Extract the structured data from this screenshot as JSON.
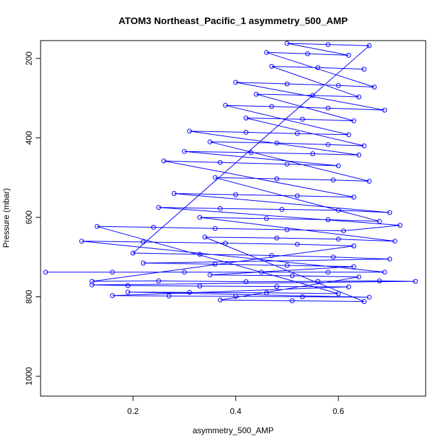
{
  "chart_data": {
    "type": "scatter",
    "title": "ATOM3 Northeast_Pacific_1 asymmetry_500_AMP",
    "xlabel": "asymmetry_500_AMP",
    "ylabel": "Pressure (mbar)",
    "x_ticks": [
      "0.2",
      "0.4",
      "0.6"
    ],
    "y_ticks": [
      "200",
      "400",
      "600",
      "800",
      "1000"
    ],
    "xlim": [
      0.02,
      0.77
    ],
    "ylim": [
      1050,
      155
    ],
    "y_reversed": true,
    "grid": false,
    "legend": "none",
    "series_color": "#0000ff",
    "marker": "open-circle",
    "connected_by_lines": true,
    "series": [
      {
        "points": [
          [
            0.03,
            738
          ],
          [
            0.16,
            738
          ],
          [
            0.3,
            738
          ],
          [
            0.45,
            738
          ],
          [
            0.58,
            738
          ],
          [
            0.69,
            738
          ],
          [
            0.1,
            660
          ],
          [
            0.22,
            662
          ],
          [
            0.38,
            665
          ],
          [
            0.52,
            668
          ],
          [
            0.63,
            672
          ],
          [
            0.12,
            761
          ],
          [
            0.25,
            760
          ],
          [
            0.42,
            762
          ],
          [
            0.56,
            761
          ],
          [
            0.68,
            760
          ],
          [
            0.75,
            761
          ],
          [
            0.12,
            770
          ],
          [
            0.19,
            772
          ],
          [
            0.33,
            773
          ],
          [
            0.48,
            774
          ],
          [
            0.62,
            775
          ],
          [
            0.16,
            797
          ],
          [
            0.27,
            798
          ],
          [
            0.4,
            799
          ],
          [
            0.53,
            800
          ],
          [
            0.66,
            801
          ],
          [
            0.19,
            788
          ],
          [
            0.31,
            789
          ],
          [
            0.46,
            790
          ],
          [
            0.6,
            792
          ],
          [
            0.13,
            623
          ],
          [
            0.24,
            625
          ],
          [
            0.36,
            628
          ],
          [
            0.5,
            631
          ],
          [
            0.61,
            634
          ],
          [
            0.72,
            620
          ],
          [
            0.25,
            575
          ],
          [
            0.37,
            578
          ],
          [
            0.49,
            580
          ],
          [
            0.6,
            582
          ],
          [
            0.7,
            588
          ],
          [
            0.28,
            540
          ],
          [
            0.4,
            543
          ],
          [
            0.52,
            546
          ],
          [
            0.63,
            549
          ],
          [
            0.26,
            458
          ],
          [
            0.37,
            462
          ],
          [
            0.5,
            466
          ],
          [
            0.6,
            470
          ],
          [
            0.3,
            434
          ],
          [
            0.43,
            437
          ],
          [
            0.55,
            440
          ],
          [
            0.64,
            443
          ],
          [
            0.31,
            383
          ],
          [
            0.42,
            386
          ],
          [
            0.52,
            389
          ],
          [
            0.62,
            392
          ],
          [
            0.38,
            318
          ],
          [
            0.47,
            321
          ],
          [
            0.58,
            325
          ],
          [
            0.69,
            330
          ],
          [
            0.4,
            260
          ],
          [
            0.5,
            264
          ],
          [
            0.6,
            268
          ],
          [
            0.67,
            272
          ],
          [
            0.46,
            185
          ],
          [
            0.54,
            188
          ],
          [
            0.62,
            192
          ],
          [
            0.5,
            162
          ],
          [
            0.58,
            165
          ],
          [
            0.66,
            168
          ],
          [
            0.2,
            690
          ],
          [
            0.33,
            693
          ],
          [
            0.47,
            696
          ],
          [
            0.59,
            700
          ],
          [
            0.7,
            705
          ],
          [
            0.22,
            715
          ],
          [
            0.36,
            718
          ],
          [
            0.5,
            721
          ],
          [
            0.63,
            724
          ],
          [
            0.35,
            745
          ],
          [
            0.51,
            747
          ],
          [
            0.64,
            750
          ],
          [
            0.37,
            808
          ],
          [
            0.51,
            810
          ],
          [
            0.65,
            812
          ],
          [
            0.34,
            650
          ],
          [
            0.48,
            652
          ],
          [
            0.6,
            655
          ],
          [
            0.71,
            660
          ],
          [
            0.33,
            600
          ],
          [
            0.46,
            603
          ],
          [
            0.58,
            606
          ],
          [
            0.68,
            610
          ],
          [
            0.36,
            500
          ],
          [
            0.48,
            503
          ],
          [
            0.59,
            506
          ],
          [
            0.66,
            509
          ],
          [
            0.35,
            410
          ],
          [
            0.48,
            413
          ],
          [
            0.58,
            417
          ],
          [
            0.65,
            420
          ],
          [
            0.42,
            350
          ],
          [
            0.53,
            353
          ],
          [
            0.63,
            357
          ],
          [
            0.44,
            290
          ],
          [
            0.55,
            293
          ],
          [
            0.64,
            297
          ],
          [
            0.47,
            220
          ],
          [
            0.56,
            223
          ],
          [
            0.65,
            227
          ]
        ]
      }
    ]
  }
}
